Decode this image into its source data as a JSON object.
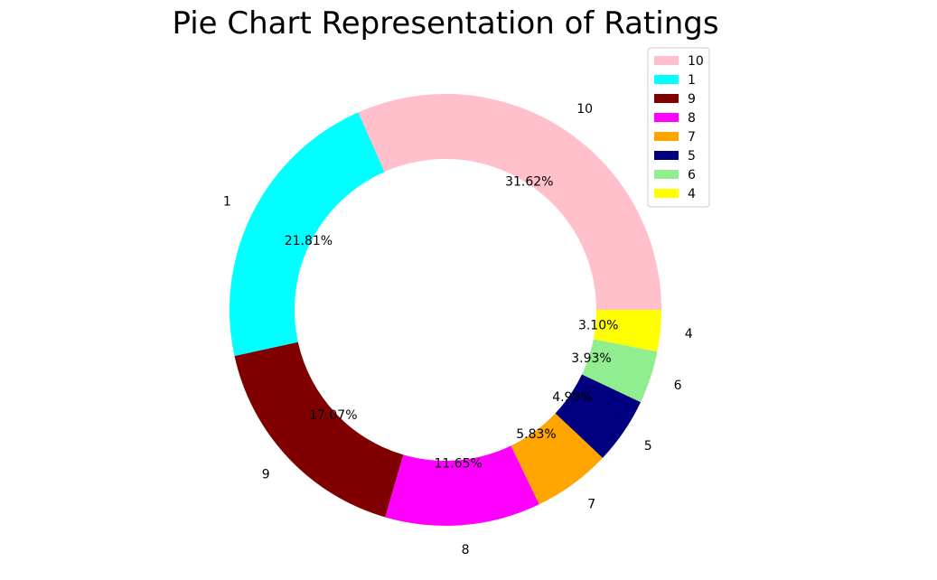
{
  "chart_data": {
    "type": "pie",
    "style": "donut",
    "title": "Pie Chart Representation of Ratings",
    "slices": [
      {
        "label": "10",
        "percent": 31.62,
        "pct_label": "31.62%",
        "color": "#FFC0CB"
      },
      {
        "label": "1",
        "percent": 21.81,
        "pct_label": "21.81%",
        "color": "#00FFFF"
      },
      {
        "label": "9",
        "percent": 17.07,
        "pct_label": "17.07%",
        "color": "#800000"
      },
      {
        "label": "8",
        "percent": 11.65,
        "pct_label": "11.65%",
        "color": "#FF00FF"
      },
      {
        "label": "7",
        "percent": 5.83,
        "pct_label": "5.83%",
        "color": "#FFA500"
      },
      {
        "label": "5",
        "percent": 4.99,
        "pct_label": "4.99%",
        "color": "#000080"
      },
      {
        "label": "6",
        "percent": 3.93,
        "pct_label": "3.93%",
        "color": "#90EE90"
      },
      {
        "label": "4",
        "percent": 3.1,
        "pct_label": "3.10%",
        "color": "#FFFF00"
      }
    ],
    "legend": {
      "placement": "top-right",
      "entries": [
        "10",
        "1",
        "9",
        "8",
        "7",
        "5",
        "6",
        "4"
      ]
    }
  }
}
